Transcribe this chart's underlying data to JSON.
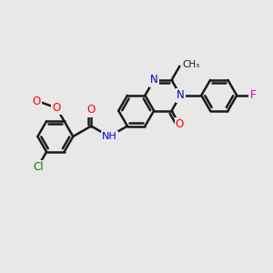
{
  "background_color": "#e8e8e8",
  "bond_color": "#1a1a1a",
  "bond_width": 1.8,
  "atom_colors": {
    "O": "#ff0000",
    "N": "#0000dd",
    "Cl": "#008000",
    "F": "#cc00cc",
    "C": "#1a1a1a"
  },
  "font_size": 8.5,
  "figsize": [
    3.0,
    3.0
  ],
  "dpi": 100
}
